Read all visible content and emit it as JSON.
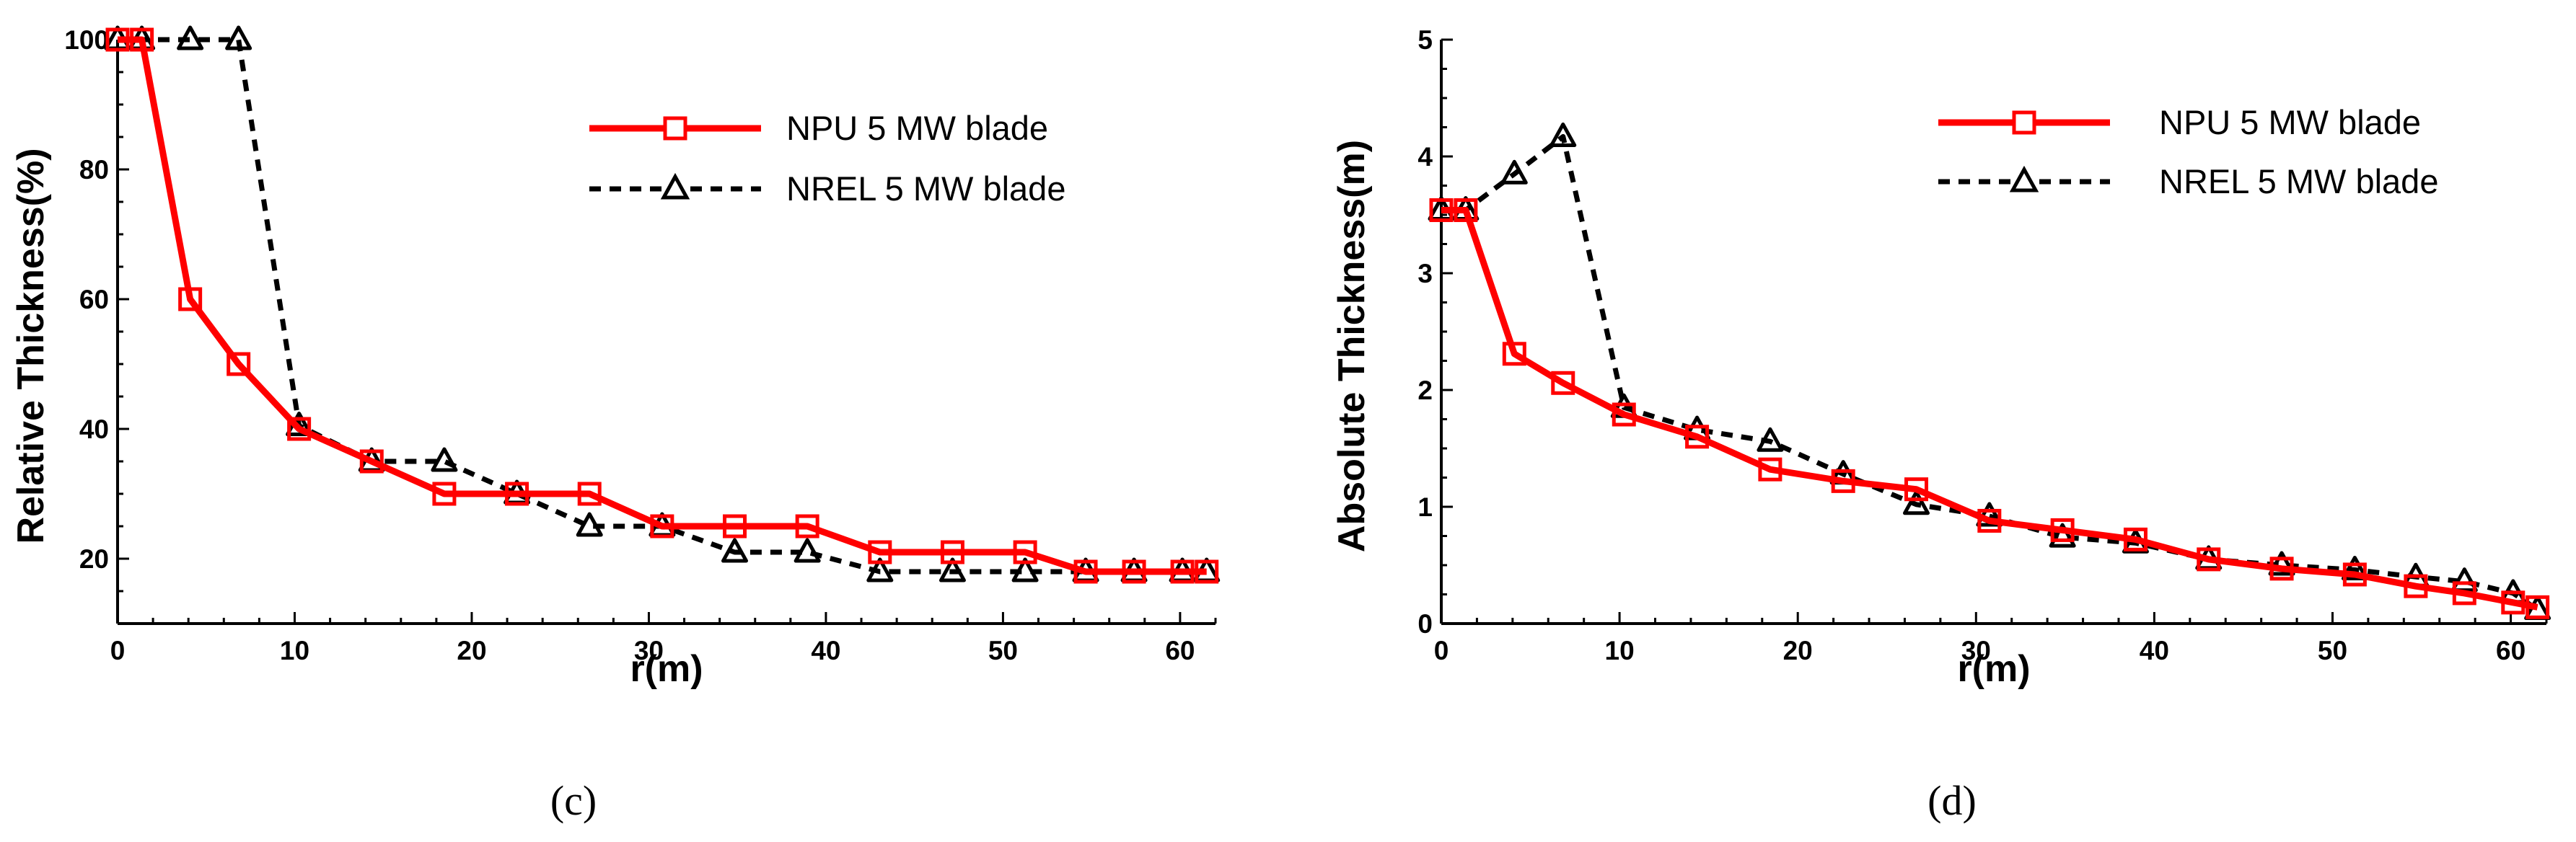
{
  "chart_data": [
    {
      "type": "line",
      "caption": "(c)",
      "title": "",
      "xlabel": "r(m)",
      "ylabel": "Relative Thickness(%)",
      "xlim": [
        0,
        62
      ],
      "ylim": [
        10,
        100
      ],
      "xticks": [
        0,
        10,
        20,
        30,
        40,
        50,
        60
      ],
      "yticks": [
        20,
        40,
        60,
        80,
        100
      ],
      "legend_position": "top-right",
      "series": [
        {
          "name": "NPU 5 MW blade",
          "color": "#ff0000",
          "line": "solid",
          "marker": "square",
          "x": [
            0,
            1.37,
            4.1,
            6.83,
            10.25,
            14.35,
            18.45,
            22.55,
            26.65,
            30.75,
            34.85,
            38.95,
            43.05,
            47.15,
            51.25,
            54.67,
            57.4,
            60.13,
            61.5
          ],
          "y": [
            100,
            100,
            60,
            50,
            40,
            35,
            30,
            30,
            30,
            25,
            25,
            25,
            21,
            21,
            21,
            18,
            18,
            18,
            18
          ]
        },
        {
          "name": "NREL 5 MW blade",
          "color": "#000000",
          "line": "dashed",
          "marker": "triangle",
          "x": [
            0,
            1.37,
            4.1,
            6.83,
            10.25,
            14.35,
            18.45,
            22.55,
            26.65,
            30.75,
            34.85,
            38.95,
            43.05,
            47.15,
            51.25,
            54.67,
            57.4,
            60.13,
            61.5
          ],
          "y": [
            100,
            100,
            100,
            100,
            40.5,
            35,
            35,
            30,
            25,
            25,
            21,
            21,
            18,
            18,
            18,
            18,
            18,
            18,
            18
          ]
        }
      ]
    },
    {
      "type": "line",
      "caption": "(d)",
      "title": "",
      "xlabel": "r(m)",
      "ylabel": "Absolute Thickness(m)",
      "xlim": [
        0,
        62
      ],
      "ylim": [
        0,
        5
      ],
      "xticks": [
        0,
        10,
        20,
        30,
        40,
        50,
        60
      ],
      "yticks": [
        0,
        1,
        2,
        3,
        4,
        5
      ],
      "legend_position": "top-right",
      "series": [
        {
          "name": "NPU 5 MW blade",
          "color": "#ff0000",
          "line": "solid",
          "marker": "square",
          "x": [
            0,
            1.37,
            4.1,
            6.83,
            10.25,
            14.35,
            18.45,
            22.55,
            26.65,
            30.75,
            34.85,
            38.95,
            43.05,
            47.15,
            51.25,
            54.67,
            57.4,
            60.13,
            61.5
          ],
          "y": [
            3.54,
            3.54,
            2.31,
            2.06,
            1.79,
            1.6,
            1.32,
            1.22,
            1.15,
            0.88,
            0.8,
            0.72,
            0.55,
            0.47,
            0.42,
            0.32,
            0.26,
            0.18,
            0.14
          ]
        },
        {
          "name": "NREL 5 MW blade",
          "color": "#000000",
          "line": "dashed",
          "marker": "triangle",
          "x": [
            0,
            1.37,
            4.1,
            6.83,
            10.25,
            14.35,
            18.45,
            22.55,
            26.65,
            30.75,
            34.85,
            38.95,
            43.05,
            47.15,
            51.25,
            54.67,
            57.4,
            60.13,
            61.5
          ],
          "y": [
            3.54,
            3.54,
            3.85,
            4.17,
            1.85,
            1.66,
            1.56,
            1.28,
            1.02,
            0.92,
            0.74,
            0.69,
            0.55,
            0.5,
            0.46,
            0.4,
            0.36,
            0.26,
            0.12
          ]
        }
      ]
    }
  ]
}
